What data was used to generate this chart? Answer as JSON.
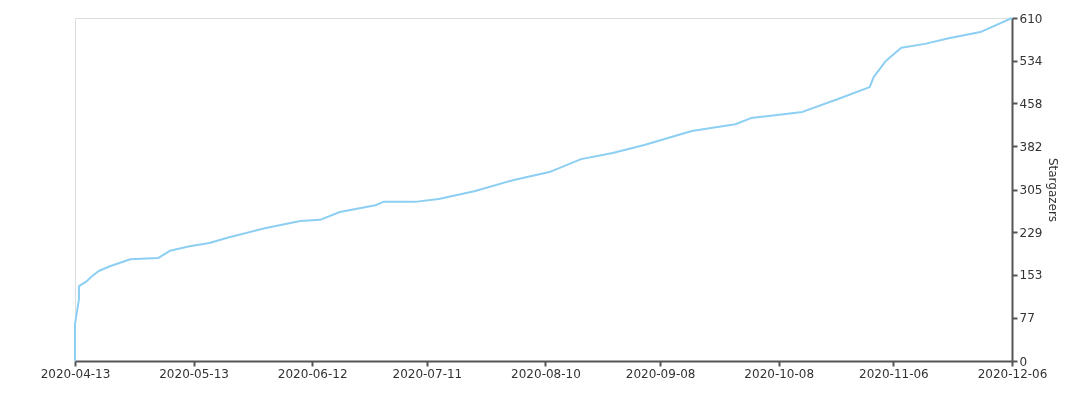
{
  "chart_data": {
    "type": "line",
    "ylabel": "Stargazers",
    "x": [
      "2020-04-13",
      "2020-04-13",
      "2020-04-14",
      "2020-04-14",
      "2020-04-16",
      "2020-04-17",
      "2020-04-19",
      "2020-04-22",
      "2020-04-27",
      "2020-05-04",
      "2020-05-07",
      "2020-05-12",
      "2020-05-17",
      "2020-05-22",
      "2020-05-31",
      "2020-06-09",
      "2020-06-14",
      "2020-06-19",
      "2020-06-28",
      "2020-06-30",
      "2020-07-08",
      "2020-07-14",
      "2020-07-23",
      "2020-08-02",
      "2020-08-11",
      "2020-08-19",
      "2020-08-27",
      "2020-09-04",
      "2020-09-16",
      "2020-09-27",
      "2020-10-01",
      "2020-10-14",
      "2020-10-23",
      "2020-10-31",
      "2020-11-01",
      "2020-11-04",
      "2020-11-08",
      "2020-11-14",
      "2020-11-20",
      "2020-11-28",
      "2020-12-06"
    ],
    "series": [
      {
        "color": "#8ccff3",
        "values": [
          0,
          66,
          110,
          133,
          142,
          149,
          160,
          169,
          181,
          183,
          196,
          204,
          210,
          220,
          236,
          249,
          251,
          265,
          277,
          283,
          283,
          288,
          302,
          322,
          336,
          359,
          370,
          384,
          409,
          421,
          432,
          443,
          466,
          487,
          505,
          533,
          557,
          564,
          574,
          585,
          610
        ]
      }
    ],
    "xlim": [
      "2020-04-13",
      "2020-12-06"
    ],
    "xticks": [
      "2020-04-13",
      "2020-05-13",
      "2020-06-12",
      "2020-07-11",
      "2020-08-10",
      "2020-09-08",
      "2020-10-08",
      "2020-11-06",
      "2020-12-06"
    ],
    "ylim": [
      0,
      610
    ],
    "yticks": [
      0,
      77,
      153,
      229,
      305,
      382,
      458,
      534,
      610
    ],
    "grid": false,
    "marker": "none",
    "line_style": "solid"
  }
}
